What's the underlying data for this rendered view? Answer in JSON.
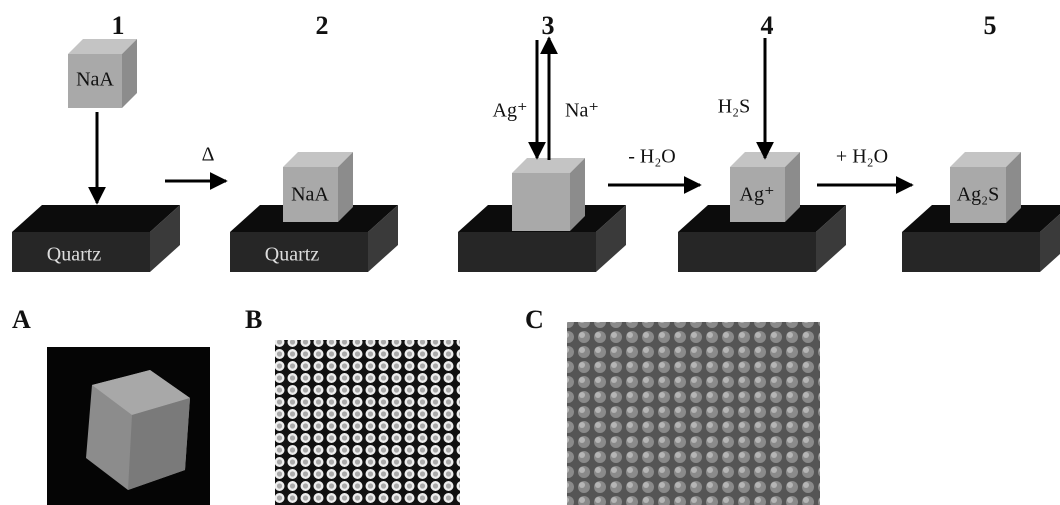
{
  "steps": [
    {
      "number": "1",
      "cube": "NaA",
      "base": "Quartz"
    },
    {
      "number": "2",
      "cube": "NaA",
      "base": "Quartz"
    },
    {
      "number": "3",
      "in": "Ag⁺",
      "out": "Na⁺"
    },
    {
      "number": "4",
      "reagent": "H₂S",
      "cube": "Ag⁺"
    },
    {
      "number": "5",
      "cube": "Ag₂S"
    }
  ],
  "transitions": [
    "Δ",
    "- H₂O",
    "+ H₂O"
  ],
  "panels": [
    "A",
    "B",
    "C"
  ]
}
